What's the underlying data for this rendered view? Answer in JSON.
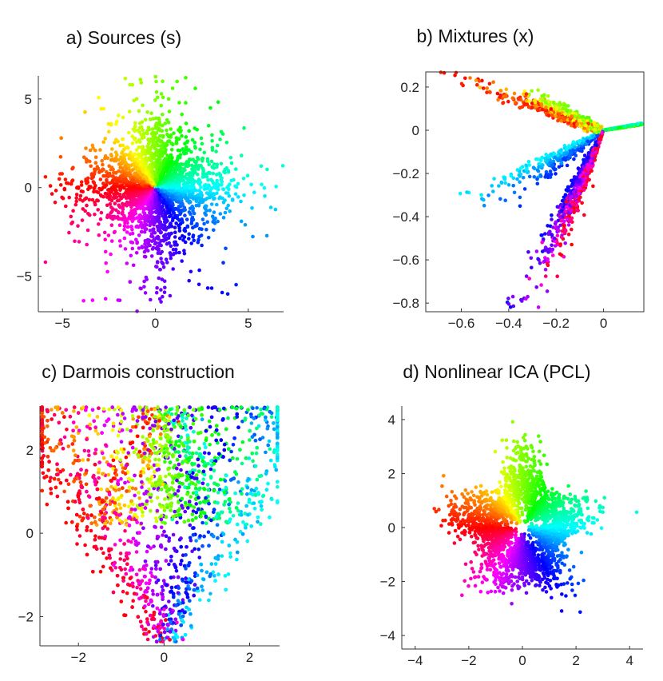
{
  "chart_data": [
    {
      "type": "scatter",
      "title": "a) Sources (s)",
      "xlim": [
        -6.3,
        6.9
      ],
      "ylim": [
        -7.0,
        6.3
      ],
      "xticks": [
        -5,
        0,
        5
      ],
      "yticks": [
        -5,
        0,
        5
      ],
      "xtick_labels": [
        "−5",
        "0",
        "5"
      ],
      "ytick_labels": [
        "−5",
        "0",
        "5"
      ],
      "color_encoding": "hue by angle",
      "grid": false,
      "legend": "none"
    },
    {
      "type": "scatter",
      "title": "b) Mixtures (x)",
      "xlim": [
        -0.75,
        0.17
      ],
      "ylim": [
        -0.84,
        0.27
      ],
      "xticks": [
        -0.6,
        -0.4,
        -0.2,
        0
      ],
      "yticks": [
        0.2,
        0,
        -0.2,
        -0.4,
        -0.6,
        -0.8
      ],
      "xtick_labels": [
        "−0.6",
        "−0.4",
        "−0.2",
        "0"
      ],
      "ytick_labels": [
        "0.2",
        "0",
        "−0.2",
        "−0.4",
        "−0.6",
        "−0.8"
      ],
      "color_encoding": "hue by angle",
      "grid": false,
      "legend": "none"
    },
    {
      "type": "scatter",
      "title": "c) Darmois construction",
      "xlim": [
        -2.9,
        2.7
      ],
      "ylim": [
        -2.7,
        3.05
      ],
      "xticks": [
        -2,
        0,
        2
      ],
      "yticks": [
        2,
        0,
        -2
      ],
      "xtick_labels": [
        "−2",
        "0",
        "2"
      ],
      "ytick_labels": [
        "2",
        "0",
        "−2"
      ],
      "color_encoding": "hue by angle",
      "grid": false,
      "legend": "none"
    },
    {
      "type": "scatter",
      "title": "d) Nonlinear ICA (PCL)",
      "xlim": [
        -4.5,
        4.5
      ],
      "ylim": [
        -4.5,
        4.5
      ],
      "xticks": [
        -4,
        -2,
        0,
        2,
        4
      ],
      "yticks": [
        4,
        2,
        0,
        -2,
        -4
      ],
      "xtick_labels": [
        "−4",
        "−2",
        "0",
        "2",
        "4"
      ],
      "ytick_labels": [
        "4",
        "2",
        "0",
        "−2",
        "−4"
      ],
      "color_encoding": "hue by angle",
      "grid": false,
      "legend": "none"
    }
  ]
}
